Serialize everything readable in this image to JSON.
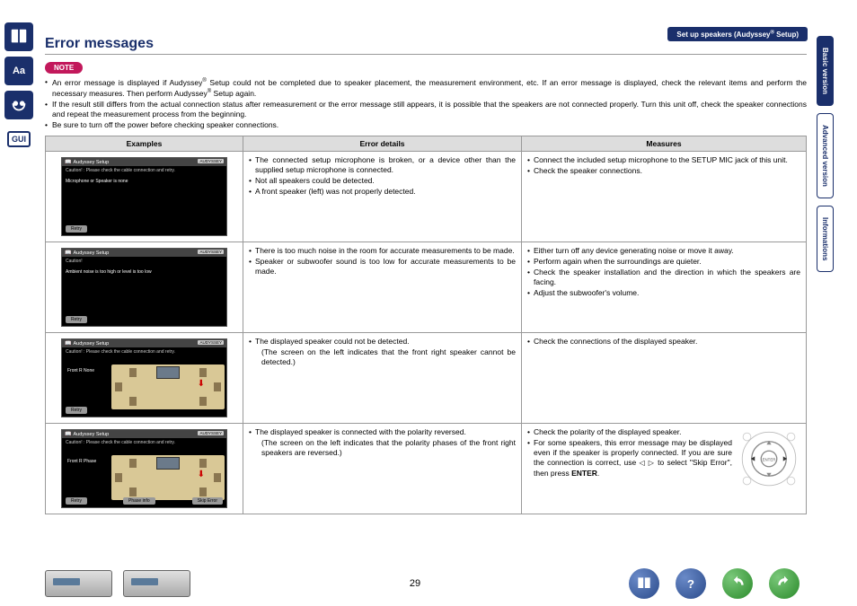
{
  "breadcrumb": "Set up speakers (Audyssey® Setup)",
  "sideTabs": {
    "basic": "Basic version",
    "advanced": "Advanced version",
    "info": "Informations"
  },
  "title": "Error messages",
  "noteBadge": "NOTE",
  "noteBullets": [
    "An error message is displayed if Audyssey® Setup could not be completed due to speaker placement, the measurement environment, etc. If an error message is displayed, check the relevant items and perform the necessary measures. Then perform Audyssey® Setup again.",
    "If the result still differs from the actual connection status after remeasurement or the error message still appears, it is possible that the speakers are not connected properly. Turn this unit off, check the speaker connections and repeat the measurement process from the beginning.",
    "Be sure to turn off the power before checking speaker connections."
  ],
  "headers": {
    "examples": "Examples",
    "details": "Error details",
    "measures": "Measures"
  },
  "rows": [
    {
      "sc": {
        "title": "Audyssey Setup",
        "caution": "Caution!  : Please check the cable connection and retry.",
        "msg": "Microphone or Speaker is none",
        "btns": [
          "Retry"
        ],
        "layout": false
      },
      "details": [
        "The connected setup microphone is broken, or a device other than the supplied setup microphone is connected.",
        "Not all speakers could be detected.",
        "A front speaker (left) was not properly detected."
      ],
      "measures": [
        "Connect the included setup microphone to the SETUP MIC jack of this unit.",
        "Check the speaker connections."
      ],
      "remote": false
    },
    {
      "sc": {
        "title": "Audyssey Setup",
        "caution": "Caution!",
        "msg": "Ambient noise is too high or level is too low",
        "btns": [
          "Retry"
        ],
        "layout": false
      },
      "details": [
        "There is too much noise in the room for accurate measurements to be made.",
        "Speaker or subwoofer sound is too low for accurate measurements to be made."
      ],
      "measures": [
        "Either turn off any device generating noise or move it away.",
        "Perform again when the surroundings are quieter.",
        "Check the speaker installation and the direction in which the speakers are facing.",
        "Adjust the subwoofer's volume."
      ],
      "remote": false
    },
    {
      "sc": {
        "title": "Audyssey Setup",
        "caution": "Caution!  : Please check the cable connection and retry.",
        "data": "Front R        None",
        "btns": [
          "Retry"
        ],
        "layout": true
      },
      "details": [
        "The displayed speaker could not be detected.",
        "(The screen on the left indicates that the front right speaker cannot be detected.)"
      ],
      "measures": [
        "Check the connections of the displayed speaker."
      ],
      "remote": false
    },
    {
      "sc": {
        "title": "Audyssey Setup",
        "caution": "Caution!  : Please check the cable connection and retry.",
        "data": "Front R        Phase",
        "btns": [
          "Retry",
          "Phase info",
          "Skip Error"
        ],
        "layout": true
      },
      "details": [
        "The displayed speaker is connected with the polarity reversed.",
        "(The screen on the left indicates that the polarity phases of the front right speakers are reversed.)"
      ],
      "measures": [
        "Check the polarity of the displayed speaker.",
        "For some speakers, this error message may be displayed even if the speaker is properly connected. If you are sure the connection is correct, use ◁ ▷ to select \"Skip Error\", then press ENTER."
      ],
      "remote": true
    }
  ],
  "enterLabel": "ENTER",
  "pageNumber": "29",
  "guiLabel": "GUI",
  "brand": "AUDYSSEY"
}
